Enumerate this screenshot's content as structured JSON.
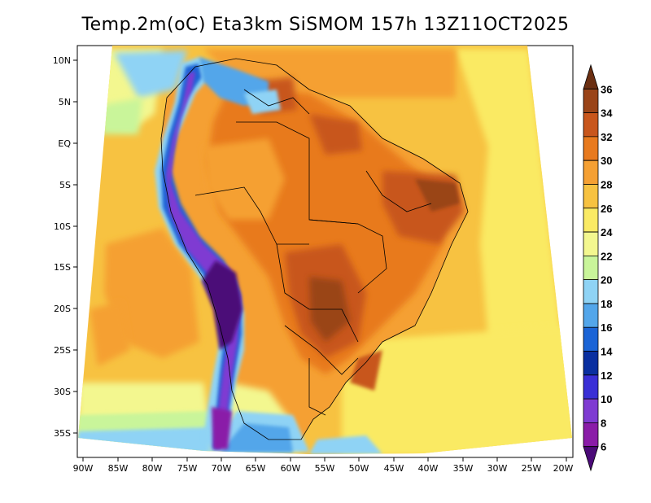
{
  "title": "Temp.2m(oC) Eta3km SiSMOM 157h 13Z11OCT2025",
  "lat_labels": [
    "10N",
    "5N",
    "EQ",
    "5S",
    "10S",
    "15S",
    "20S",
    "25S",
    "30S",
    "35S"
  ],
  "lon_labels": [
    "90W",
    "85W",
    "80W",
    "75W",
    "70W",
    "65W",
    "60W",
    "55W",
    "50W",
    "45W",
    "40W",
    "35W",
    "30W",
    "25W",
    "20W"
  ],
  "colorbar": {
    "labels": [
      "36",
      "34",
      "32",
      "30",
      "28",
      "26",
      "24",
      "22",
      "20",
      "18",
      "16",
      "14",
      "12",
      "10",
      "8",
      "6"
    ],
    "colors": [
      "#6b2f12",
      "#9a4418",
      "#c8561c",
      "#e87a1e",
      "#f5a033",
      "#f7c241",
      "#faea64",
      "#f3f78f",
      "#c9f59a",
      "#8fd3f5",
      "#53a6ea",
      "#1b64d6",
      "#0a2fa0",
      "#3a2fd6",
      "#7f3bd2",
      "#8a1ca8",
      "#4b0a78"
    ]
  }
}
